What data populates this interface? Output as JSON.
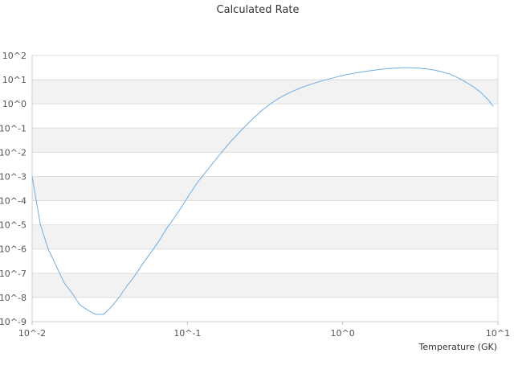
{
  "chart_data": {
    "type": "line",
    "title": "Calculated Rate",
    "xlabel": "Temperature (GK)",
    "ylabel": "",
    "x_scale": "log",
    "y_scale": "log",
    "xlim": [
      0.01,
      10
    ],
    "ylim": [
      1e-09,
      100
    ],
    "x_ticks": [
      "10^-2",
      "10^-1",
      "10^0",
      "10^1"
    ],
    "y_ticks": [
      "10^-9",
      "10^-8",
      "10^-7",
      "10^-6",
      "10^-5",
      "10^-4",
      "10^-3",
      "10^-2",
      "10^-1",
      "10^0",
      "10^1",
      "10^2"
    ],
    "grid": true,
    "band_colors": [
      "#ffffff",
      "#f2f2f2"
    ],
    "series": [
      {
        "color": "#6aaee8",
        "x": [
          0.01,
          0.0113,
          0.0127,
          0.0143,
          0.0161,
          0.0181,
          0.0203,
          0.0228,
          0.0256,
          0.0288,
          0.0323,
          0.0363,
          0.0408,
          0.0459,
          0.0516,
          0.058,
          0.0652,
          0.0733,
          0.0824,
          0.0926,
          0.104,
          0.117,
          0.131,
          0.148,
          0.166,
          0.187,
          0.21,
          0.236,
          0.265,
          0.298,
          0.335,
          0.376,
          0.423,
          0.475,
          0.534,
          0.6,
          0.675,
          0.758,
          0.852,
          0.958,
          1.077,
          1.21,
          1.36,
          1.53,
          1.72,
          1.93,
          2.17,
          2.44,
          2.74,
          3.08,
          3.46,
          3.89,
          4.37,
          4.91,
          5.52,
          6.2,
          6.97,
          7.84,
          8.81,
          9.3
        ],
        "y": [
          0.001,
          1e-05,
          1e-06,
          2e-07,
          4e-08,
          1.5e-08,
          5e-09,
          3e-09,
          2e-09,
          2e-09,
          4e-09,
          1e-08,
          3e-08,
          8e-08,
          2.5e-07,
          7e-07,
          2e-06,
          7e-06,
          2e-05,
          6e-05,
          0.0002,
          0.0006,
          0.0015,
          0.004,
          0.01,
          0.025,
          0.055,
          0.12,
          0.25,
          0.5,
          0.9,
          1.5,
          2.3,
          3.3,
          4.5,
          6,
          7.6,
          9.5,
          11.5,
          14,
          16.5,
          19,
          21.5,
          24,
          26.5,
          28.5,
          30,
          31,
          31,
          30,
          28,
          25,
          21,
          17,
          12,
          8,
          5,
          2.8,
          1.3,
          0.8
        ]
      }
    ]
  }
}
